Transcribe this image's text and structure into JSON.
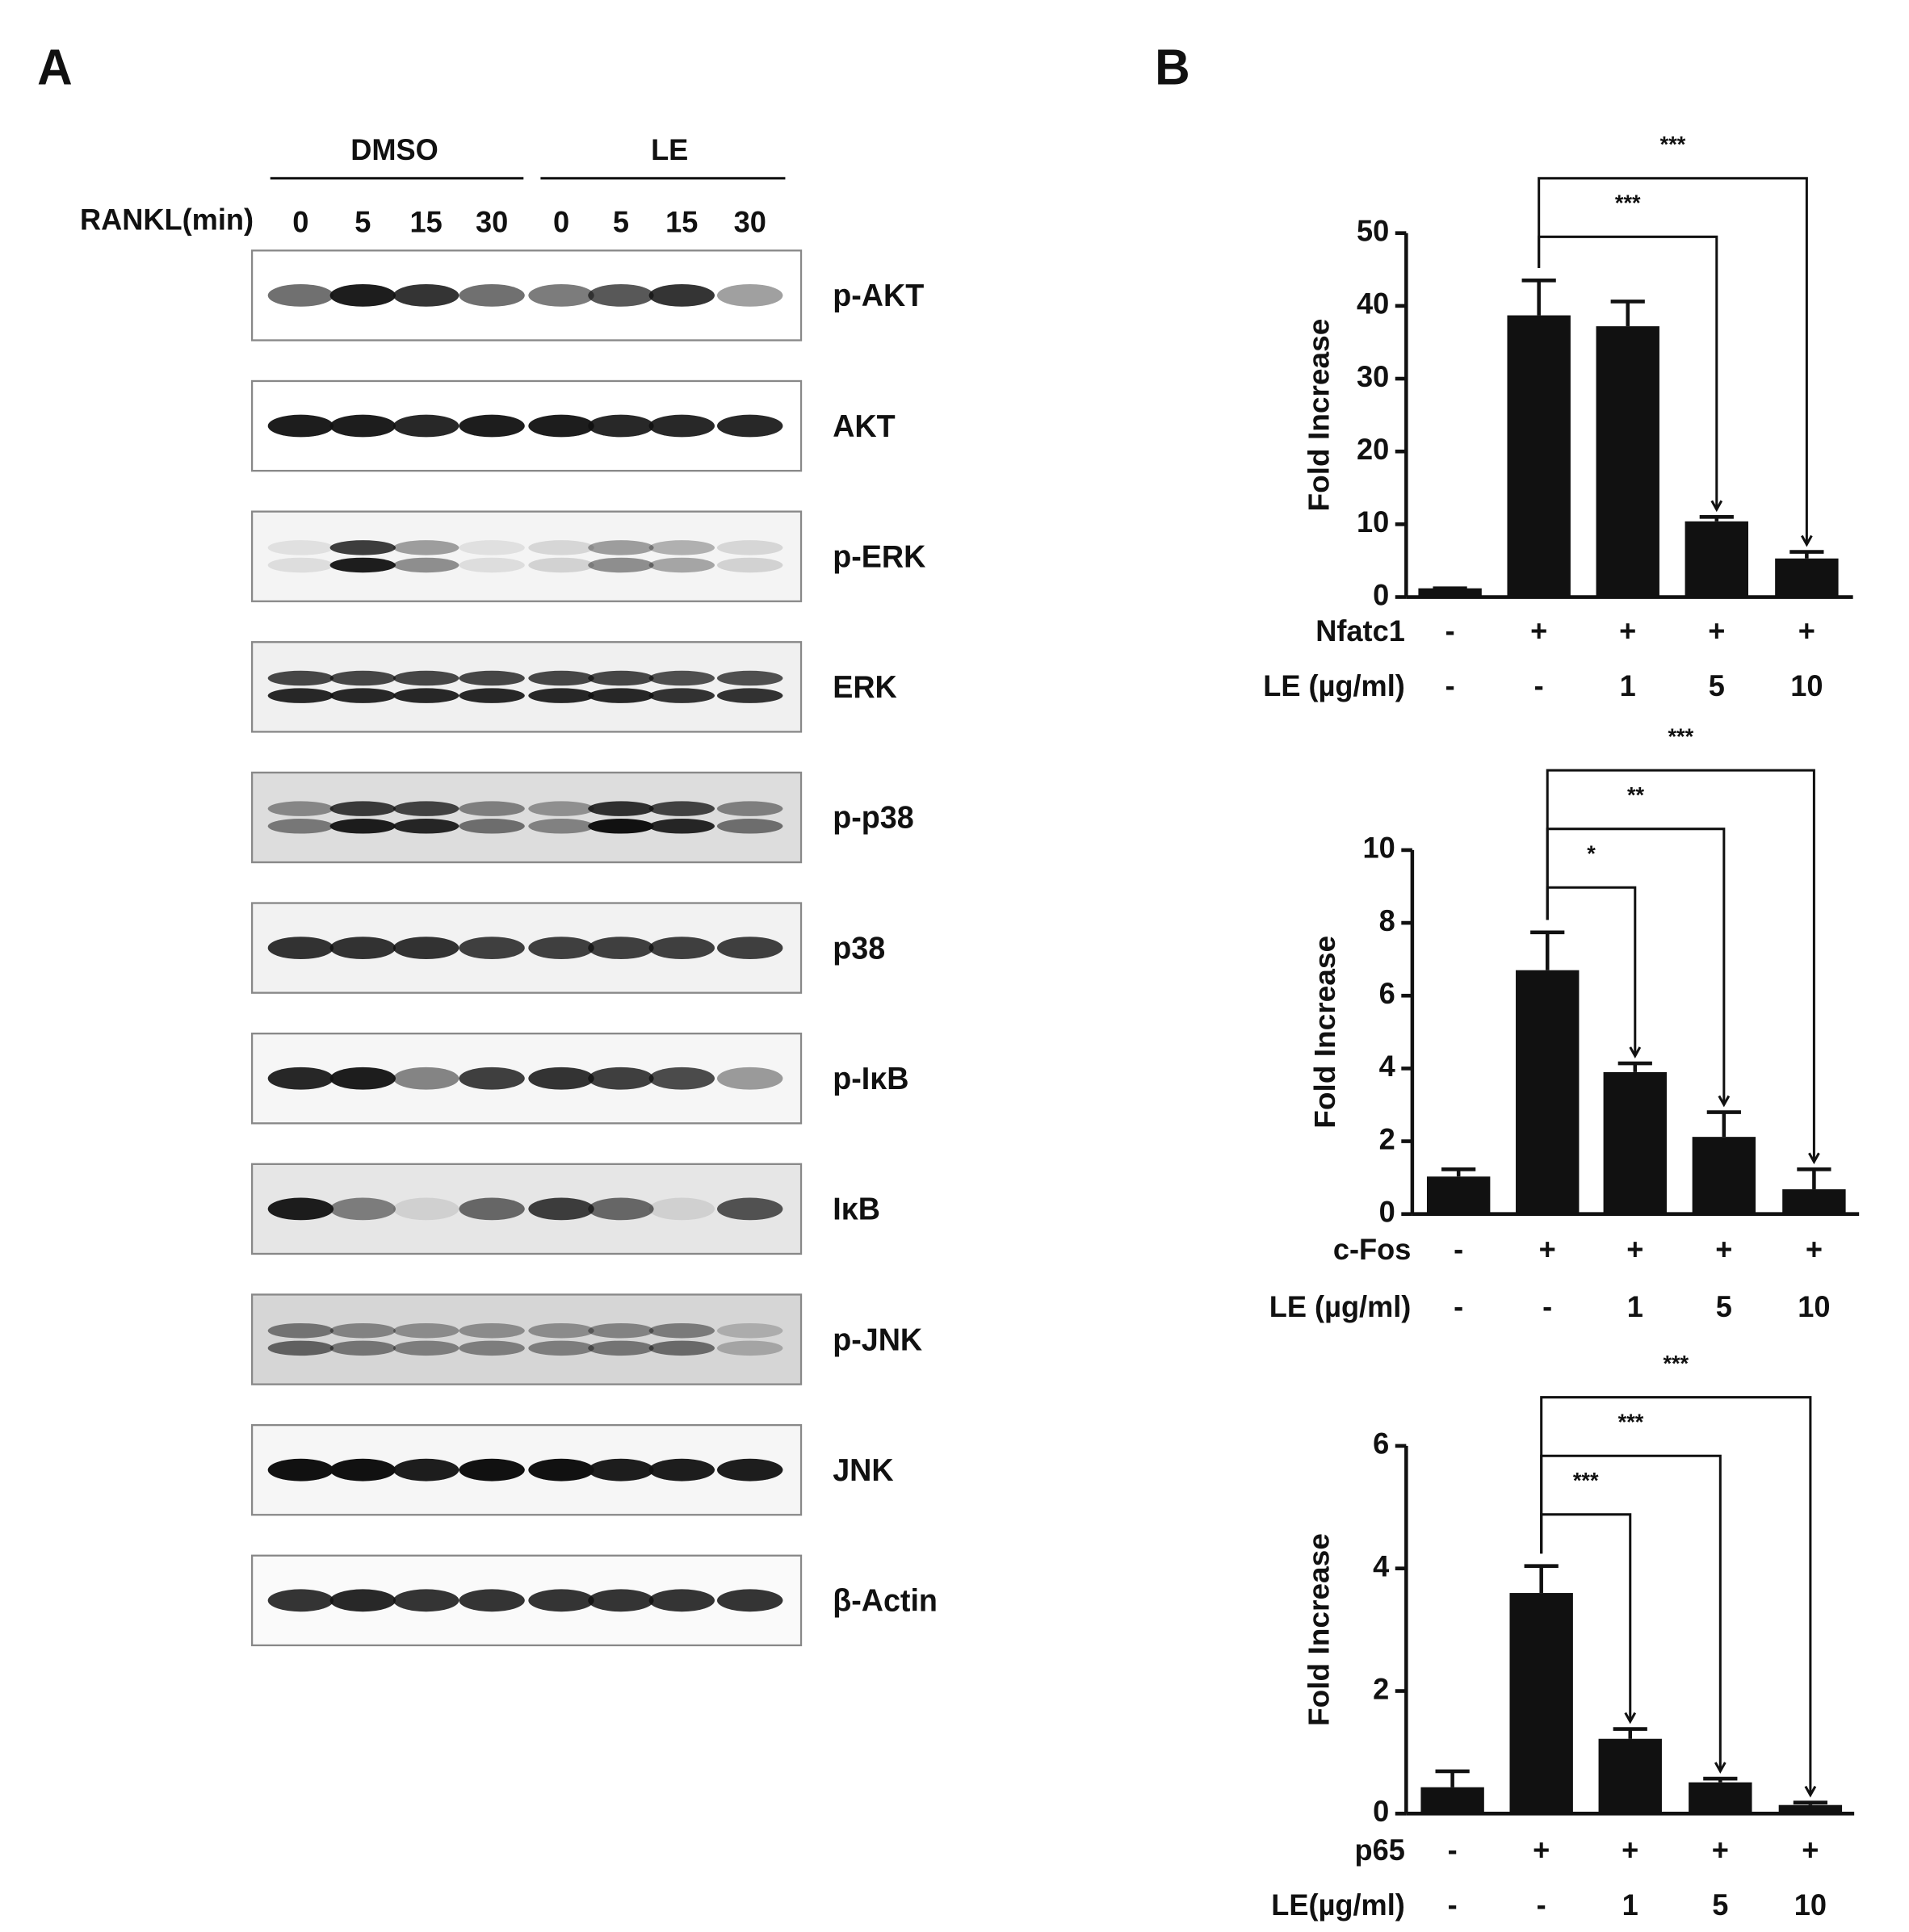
{
  "panel_labels": [
    "A",
    "B"
  ],
  "blot": {
    "groups": [
      "DMSO",
      "LE"
    ],
    "time_label": "RANKL(min)",
    "lanes": [
      "0",
      "5",
      "15",
      "30",
      "0",
      "5",
      "15",
      "30"
    ],
    "proteins": [
      "p-AKT",
      "AKT",
      "p-ERK",
      "ERK",
      "p-p38",
      "p38",
      "p-IκB",
      "IκB",
      "p-JNK",
      "JNK",
      "β-Actin"
    ]
  },
  "chart_data": [
    {
      "type": "bar",
      "ylabel": "Fold Increase",
      "color": "#111111",
      "values": [
        1.2,
        38.7,
        37.2,
        10.4,
        5.3
      ],
      "errors": [
        0,
        4.8,
        3.4,
        0.6,
        0.9
      ],
      "ylim": [
        0,
        50
      ],
      "yticks": [
        0,
        10,
        20,
        30,
        40,
        50
      ],
      "rows": [
        {
          "label": "Nfatc1",
          "values": [
            "-",
            "+",
            "+",
            "+",
            "+"
          ]
        },
        {
          "label": "LE (µg/ml)",
          "values": [
            "-",
            "-",
            "1",
            "5",
            "10"
          ]
        }
      ],
      "annotations": [
        {
          "text": "***",
          "between": [
            1,
            3
          ]
        },
        {
          "text": "***",
          "between": [
            1,
            4
          ]
        }
      ]
    },
    {
      "type": "bar",
      "ylabel": "Fold Increase",
      "color": "#111111",
      "values": [
        1.03,
        6.7,
        3.9,
        2.12,
        0.68
      ],
      "errors": [
        0.2,
        1.04,
        0.24,
        0.68,
        0.55
      ],
      "ylim": [
        0,
        10
      ],
      "yticks": [
        0,
        2,
        4,
        6,
        8,
        10
      ],
      "rows": [
        {
          "label": "c-Fos",
          "values": [
            "-",
            "+",
            "+",
            "+",
            "+"
          ]
        },
        {
          "label": "LE (µg/ml)",
          "values": [
            "-",
            "-",
            "1",
            "5",
            "10"
          ]
        }
      ],
      "annotations": [
        {
          "text": "*",
          "between": [
            1,
            2
          ]
        },
        {
          "text": "**",
          "between": [
            1,
            3
          ]
        },
        {
          "text": "***",
          "between": [
            1,
            4
          ]
        }
      ]
    },
    {
      "type": "bar",
      "ylabel": "Fold Increase",
      "color": "#111111",
      "values": [
        0.43,
        3.6,
        1.22,
        0.51,
        0.14
      ],
      "errors": [
        0.26,
        0.44,
        0.16,
        0.06,
        0.04
      ],
      "ylim": [
        0,
        6
      ],
      "yticks": [
        0,
        2,
        4,
        6
      ],
      "rows": [
        {
          "label": "p65",
          "values": [
            "-",
            "+",
            "+",
            "+",
            "+"
          ]
        },
        {
          "label": "LE(µg/ml)",
          "values": [
            "-",
            "-",
            "1",
            "5",
            "10"
          ]
        }
      ],
      "annotations": [
        {
          "text": "***",
          "between": [
            1,
            2
          ]
        },
        {
          "text": "***",
          "between": [
            1,
            3
          ]
        },
        {
          "text": "***",
          "between": [
            1,
            4
          ]
        }
      ]
    }
  ]
}
